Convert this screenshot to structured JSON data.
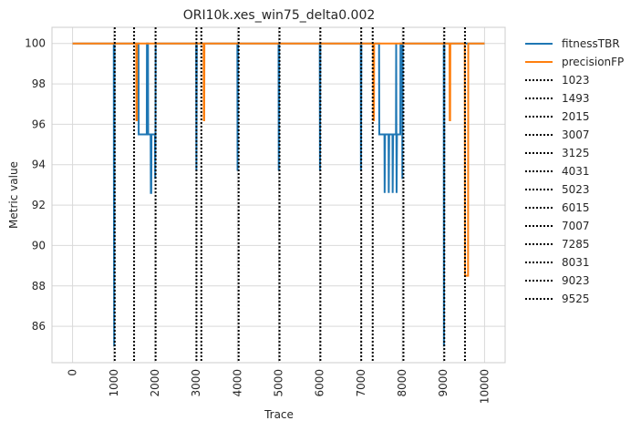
{
  "chart_data": {
    "type": "line",
    "title": "ORI10k.xes_win75_delta0.002",
    "xlabel": "Trace",
    "ylabel": "Metric value",
    "xlim": [
      -500,
      10500
    ],
    "ylim": [
      84.2,
      100.8
    ],
    "xticks": [
      0,
      1000,
      2000,
      3000,
      4000,
      5000,
      6000,
      7000,
      8000,
      9000,
      10000
    ],
    "yticks": [
      86,
      88,
      90,
      92,
      94,
      96,
      98,
      100
    ],
    "grid": true,
    "legend_position": "outside-right",
    "series": [
      {
        "name": "fitnessTBR",
        "color": "#1f77b4",
        "points": [
          [
            0,
            100
          ],
          [
            1000,
            100
          ],
          [
            1003,
            93.7
          ],
          [
            1010,
            85.0
          ],
          [
            1018,
            100
          ],
          [
            1600,
            100
          ],
          [
            1605,
            95.5
          ],
          [
            1800,
            95.5
          ],
          [
            1805,
            100
          ],
          [
            1830,
            100
          ],
          [
            1835,
            95.5
          ],
          [
            1895,
            95.5
          ],
          [
            1900,
            92.6
          ],
          [
            1910,
            92.6
          ],
          [
            1915,
            95.5
          ],
          [
            2000,
            95.5
          ],
          [
            2005,
            93.3
          ],
          [
            2012,
            95.5
          ],
          [
            2017,
            100
          ],
          [
            3000,
            100
          ],
          [
            3005,
            93.7
          ],
          [
            3015,
            100
          ],
          [
            4000,
            100
          ],
          [
            4005,
            93.7
          ],
          [
            4015,
            100
          ],
          [
            5000,
            100
          ],
          [
            5005,
            93.7
          ],
          [
            5015,
            100
          ],
          [
            6000,
            100
          ],
          [
            6005,
            93.7
          ],
          [
            6015,
            100
          ],
          [
            6995,
            100
          ],
          [
            7000,
            93.7
          ],
          [
            7010,
            100
          ],
          [
            7285,
            100
          ],
          [
            7290,
            100
          ],
          [
            7440,
            100
          ],
          [
            7445,
            95.5
          ],
          [
            7570,
            95.5
          ],
          [
            7575,
            92.6
          ],
          [
            7585,
            95.5
          ],
          [
            7670,
            95.5
          ],
          [
            7675,
            92.6
          ],
          [
            7685,
            95.5
          ],
          [
            7765,
            95.5
          ],
          [
            7770,
            92.6
          ],
          [
            7780,
            95.5
          ],
          [
            7850,
            95.5
          ],
          [
            7855,
            100
          ],
          [
            7860,
            95.5
          ],
          [
            7865,
            92.6
          ],
          [
            7875,
            95.5
          ],
          [
            7955,
            95.5
          ],
          [
            7960,
            100
          ],
          [
            8000,
            100
          ],
          [
            8005,
            93.3
          ],
          [
            8015,
            100
          ],
          [
            9010,
            100
          ],
          [
            9015,
            85.0
          ],
          [
            9025,
            100
          ],
          [
            10000,
            100
          ]
        ]
      },
      {
        "name": "precisionFP",
        "color": "#ff7f0e",
        "points": [
          [
            0,
            100
          ],
          [
            1545,
            100
          ],
          [
            1550,
            96.2
          ],
          [
            1560,
            96.2
          ],
          [
            1565,
            100
          ],
          [
            3180,
            100
          ],
          [
            3185,
            96.2
          ],
          [
            3195,
            96.2
          ],
          [
            3200,
            100
          ],
          [
            7300,
            100
          ],
          [
            7305,
            96.2
          ],
          [
            7315,
            96.2
          ],
          [
            7320,
            100
          ],
          [
            9150,
            100
          ],
          [
            9155,
            96.2
          ],
          [
            9165,
            96.2
          ],
          [
            9170,
            100
          ],
          [
            9520,
            100
          ],
          [
            9525,
            88.5
          ],
          [
            9600,
            88.5
          ],
          [
            9605,
            100
          ],
          [
            10000,
            100
          ]
        ]
      }
    ],
    "vlines": [
      1023,
      1493,
      2015,
      3007,
      3125,
      4031,
      5023,
      6015,
      7007,
      7285,
      8031,
      9023,
      9525
    ],
    "vline_style": {
      "color": "#000000",
      "dash": "dotted"
    },
    "legend": [
      "fitnessTBR",
      "precisionFP",
      "1023",
      "1493",
      "2015",
      "3007",
      "3125",
      "4031",
      "5023",
      "6015",
      "7007",
      "7285",
      "8031",
      "9023",
      "9525"
    ]
  }
}
